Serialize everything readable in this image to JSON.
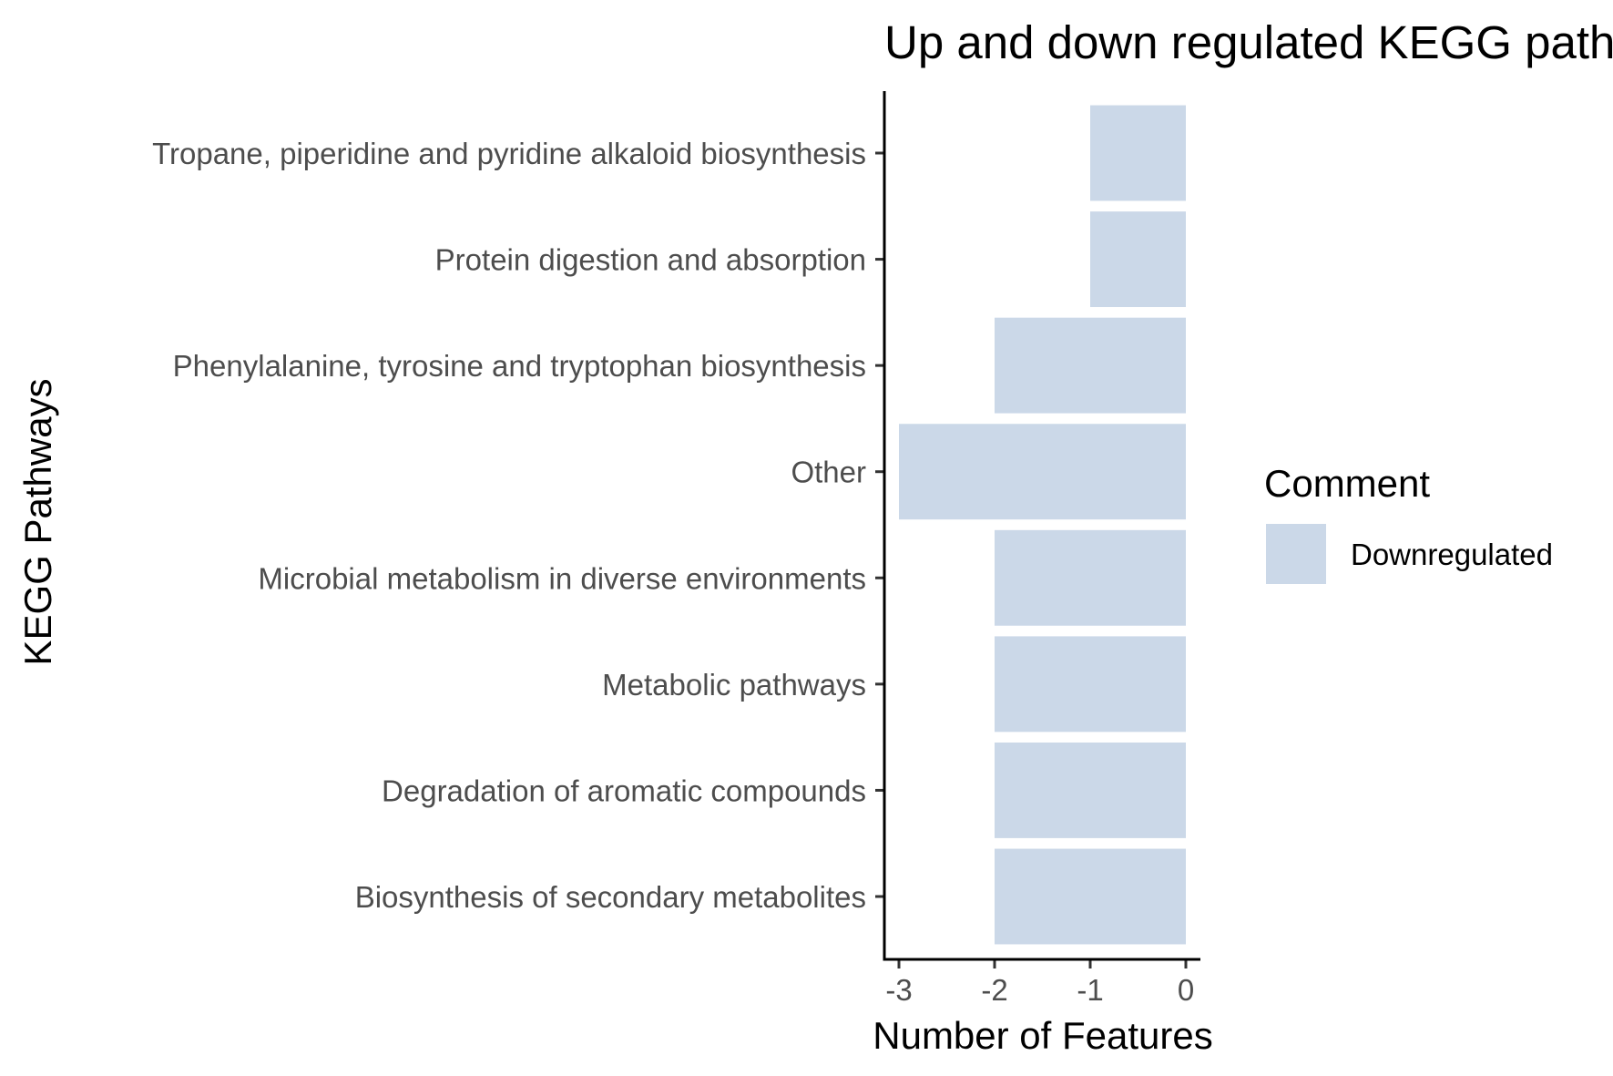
{
  "chart_data": {
    "type": "bar",
    "orientation": "horizontal",
    "title": "Up and down regulated KEGG pathways",
    "xlabel": "Number of Features",
    "ylabel": "KEGG Pathways",
    "xlim": [
      -3,
      0
    ],
    "x_ticks": [
      "-3",
      "-2",
      "-1",
      "0"
    ],
    "grid": false,
    "categories": [
      "Tropane, piperidine and pyridine alkaloid biosynthesis",
      "Protein digestion and absorption",
      "Phenylalanine, tyrosine and tryptophan biosynthesis",
      "Other",
      "Microbial metabolism in diverse environments",
      "Metabolic pathways",
      "Degradation of aromatic compounds",
      "Biosynthesis of secondary metabolites"
    ],
    "series": [
      {
        "name": "Downregulated",
        "color": "#cbd8e8",
        "values": [
          -1,
          -1,
          -2,
          -3,
          -2,
          -2,
          -2,
          -2
        ]
      }
    ],
    "legend": {
      "title": "Comment",
      "position": "right",
      "entries": [
        "Downregulated"
      ]
    }
  }
}
